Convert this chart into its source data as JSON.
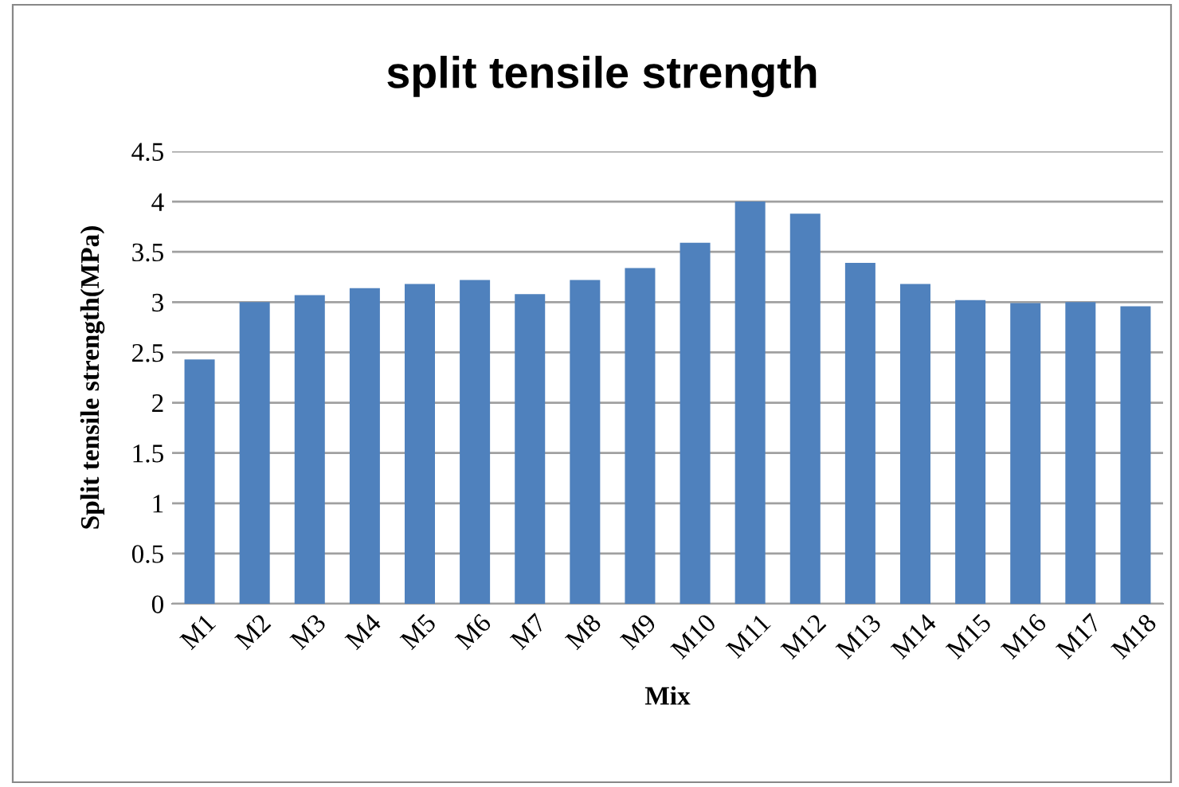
{
  "chart_data": {
    "type": "bar",
    "title": "split tensile strength",
    "xlabel": "Mix",
    "ylabel": "Split tensile strength(MPa)",
    "categories": [
      "M1",
      "M2",
      "M3",
      "M4",
      "M5",
      "M6",
      "M7",
      "M8",
      "M9",
      "M10",
      "M11",
      "M12",
      "M13",
      "M14",
      "M15",
      "M16",
      "M17",
      "M18"
    ],
    "values": [
      2.43,
      3.0,
      3.07,
      3.14,
      3.18,
      3.22,
      3.08,
      3.22,
      3.34,
      3.59,
      4.0,
      3.88,
      3.39,
      3.18,
      3.02,
      2.99,
      3.0,
      2.96
    ],
    "color": "#4f81bd",
    "ylim": [
      0,
      4.5
    ],
    "yticks": [
      0,
      0.5,
      1,
      1.5,
      2,
      2.5,
      3,
      3.5,
      4,
      4.5
    ],
    "grid": "y",
    "legend": false
  }
}
